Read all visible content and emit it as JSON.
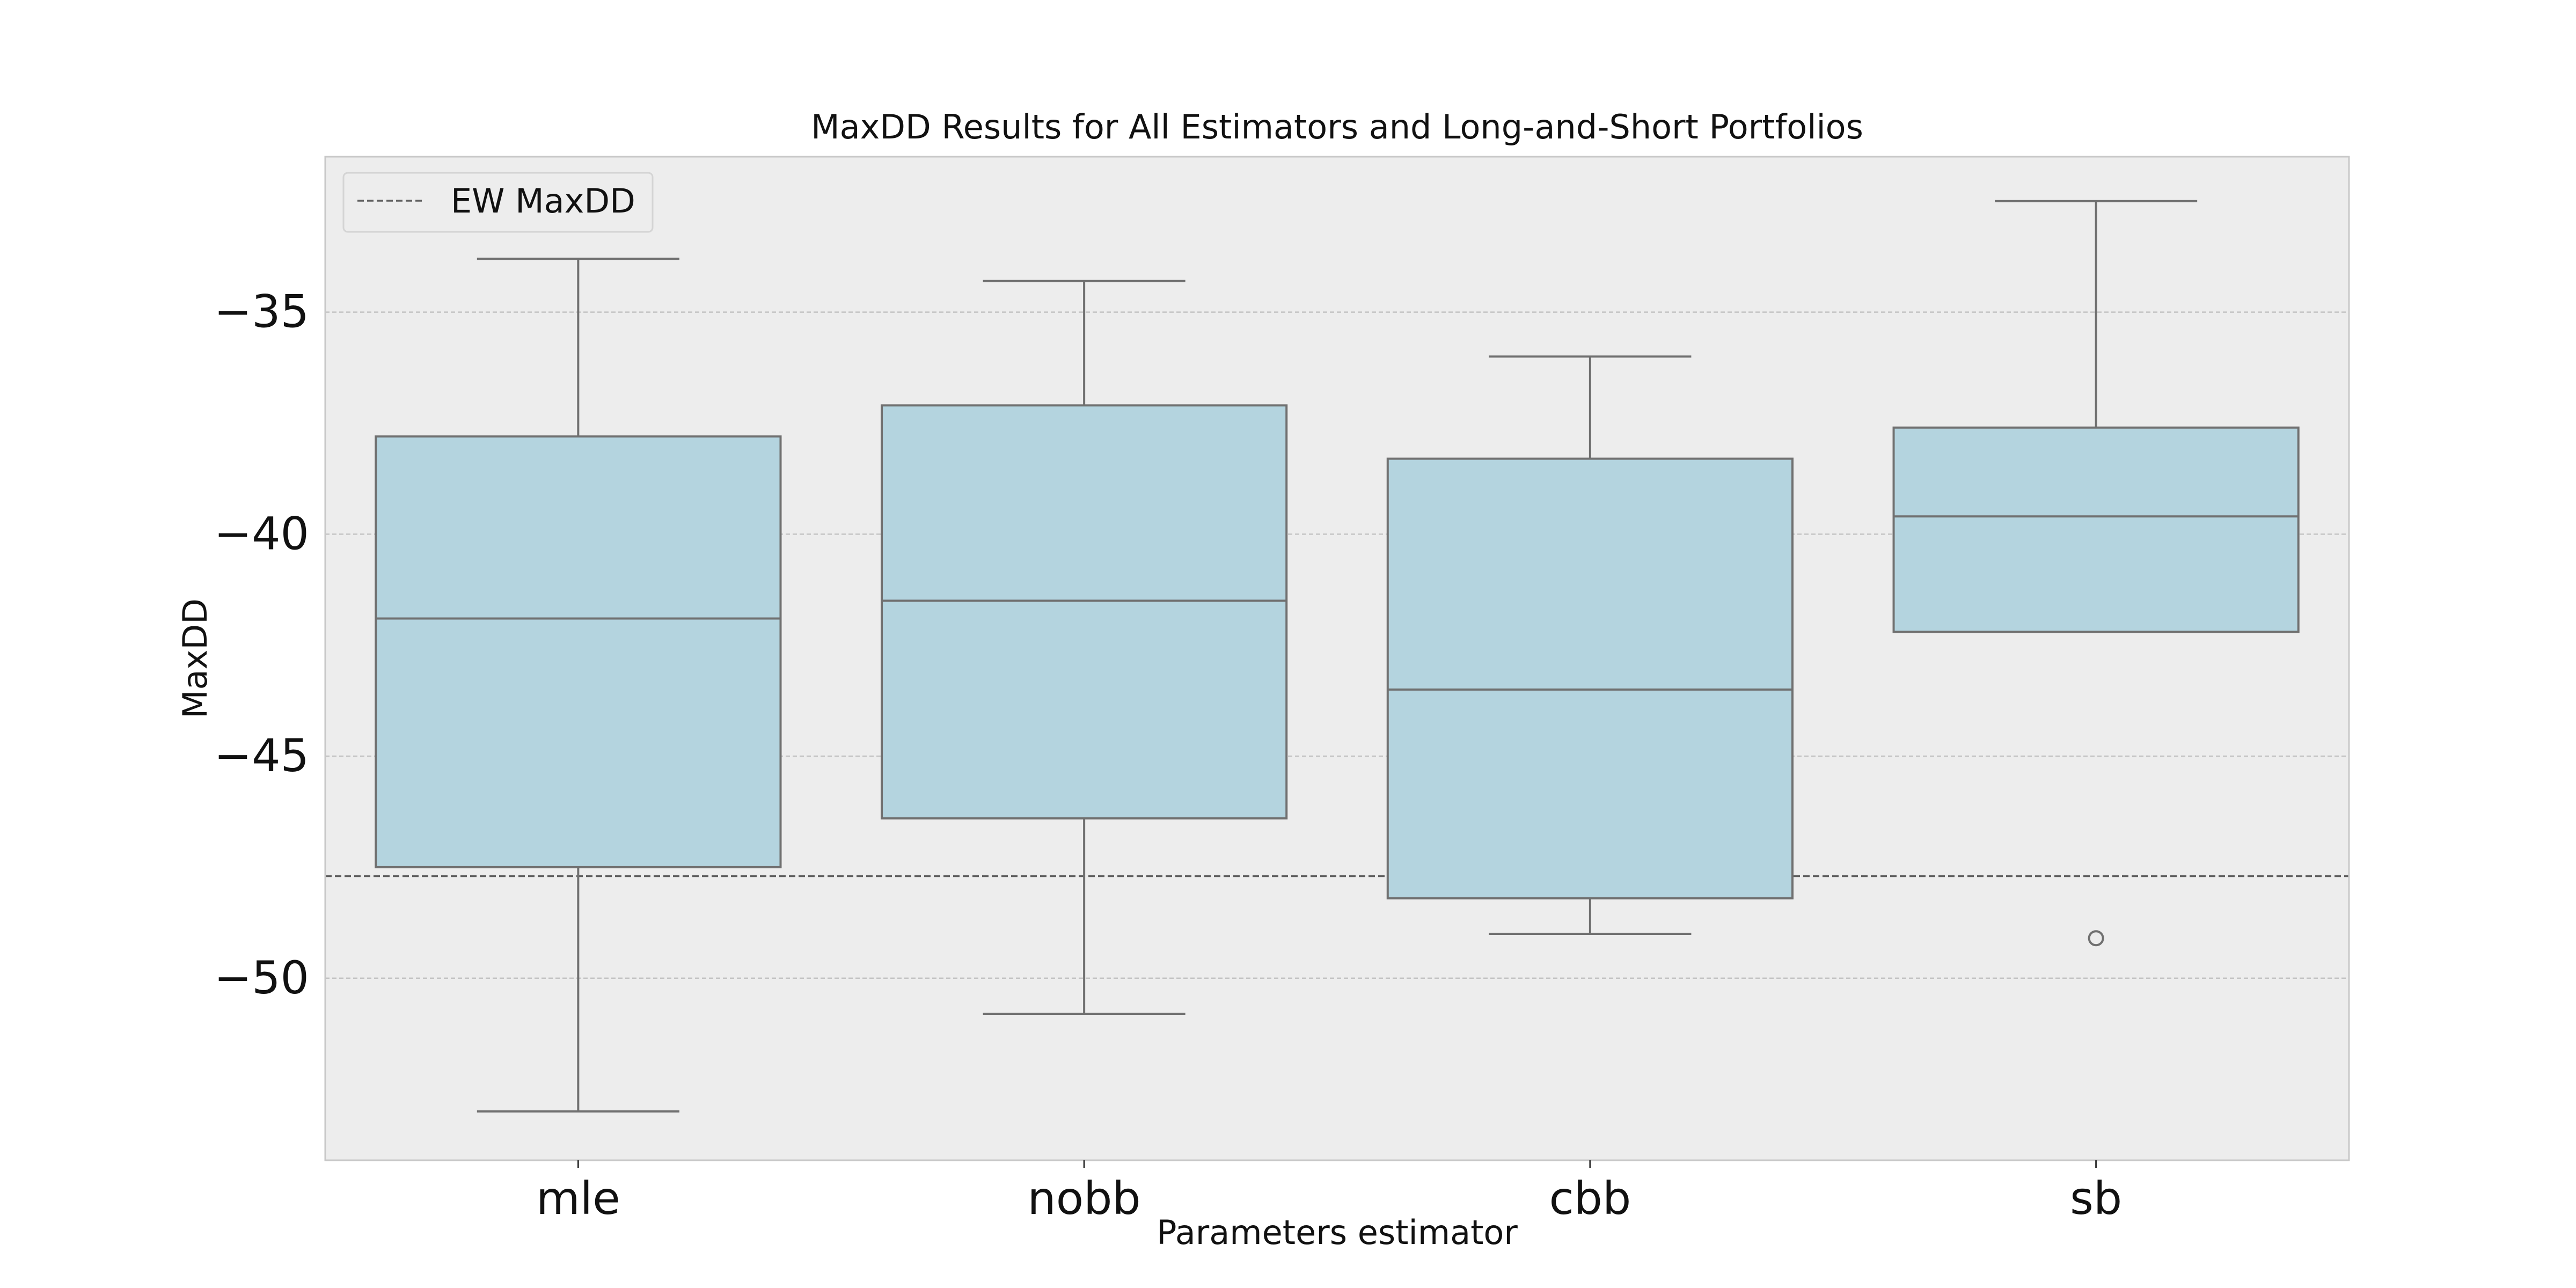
{
  "chart_data": {
    "type": "box",
    "title": "MaxDD Results for All Estimators and Long-and-Short Portfolios",
    "xlabel": "Parameters estimator",
    "ylabel": "MaxDD",
    "categories": [
      "mle",
      "nobb",
      "cbb",
      "sb"
    ],
    "yticks": [
      -35,
      -40,
      -45,
      -50
    ],
    "ytick_labels": [
      "−35",
      "−40",
      "−45",
      "−50"
    ],
    "ylim": [
      -54.1,
      -31.5
    ],
    "grid": "y",
    "legend": {
      "position": "top-left",
      "entries": [
        "EW MaxDD"
      ]
    },
    "reference_line": {
      "name": "EW MaxDD",
      "value": -47.7
    },
    "boxes": [
      {
        "category": "mle",
        "whisker_low": -53.0,
        "q1": -47.5,
        "median": -41.9,
        "q3": -37.8,
        "whisker_high": -33.8,
        "outliers": []
      },
      {
        "category": "nobb",
        "whisker_low": -50.8,
        "q1": -46.4,
        "median": -41.5,
        "q3": -37.1,
        "whisker_high": -34.3,
        "outliers": []
      },
      {
        "category": "cbb",
        "whisker_low": -49.0,
        "q1": -48.2,
        "median": -43.5,
        "q3": -38.3,
        "whisker_high": -36.0,
        "outliers": []
      },
      {
        "category": "sb",
        "whisker_low": -42.2,
        "q1": -42.2,
        "median": -39.6,
        "q3": -37.6,
        "whisker_high": -32.5,
        "outliers": [
          -49.1
        ]
      }
    ],
    "colors": {
      "box_fill": "#b4d4df",
      "edge": "#707070",
      "plot_bg": "#ededed",
      "grid": "#c4c4c4",
      "ref_line": "#606060"
    }
  }
}
